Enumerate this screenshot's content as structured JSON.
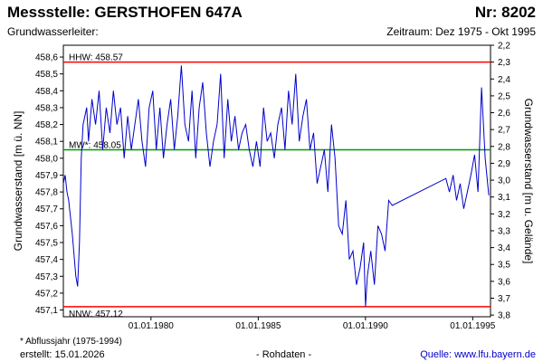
{
  "header": {
    "title": "Messstelle: GERSTHOFEN 647A",
    "number": "Nr: 8202",
    "subtitle": "Grundwasserleiter:",
    "period": "Zeitraum: Dez 1975 - Okt 1995"
  },
  "footer": {
    "footnote": "* Abflussjahr (1975-1994)",
    "created": "erstellt:  15.01.2026",
    "rawdata": "- Rohdaten -",
    "source": "Quelle: www.lfu.bayern.de"
  },
  "colors": {
    "series": "#0000cc",
    "extreme_lines": "#ff0000",
    "mean_line": "#009900",
    "source_link": "#0000cc"
  },
  "chart_data": {
    "type": "line",
    "title": "Messstelle: GERSTHOFEN 647A",
    "ylabel": "Grundwasserstand [m ü. NN]",
    "y2label": "Grundwasserstand [m u. Gelände]",
    "xlim": [
      "1975-12-01",
      "1995-10-31"
    ],
    "ylim": [
      457.06,
      458.67
    ],
    "y2lim": [
      2.2,
      3.81
    ],
    "yticks": [
      "457,1",
      "457,2",
      "457,3",
      "457,4",
      "457,5",
      "457,6",
      "457,7",
      "457,8",
      "457,9",
      "458,0",
      "458,1",
      "458,2",
      "458,3",
      "458,4",
      "458,5",
      "458,6"
    ],
    "y2ticks": [
      "2,2",
      "2,3",
      "2,4",
      "2,5",
      "2,6",
      "2,7",
      "2,8",
      "2,9",
      "3,0",
      "3,1",
      "3,2",
      "3,3",
      "3,4",
      "3,5",
      "3,6",
      "3,7",
      "3,8"
    ],
    "xticks": [
      {
        "date": "1980-01-01",
        "label": "01.01.1980"
      },
      {
        "date": "1985-01-01",
        "label": "01.01.1985"
      },
      {
        "date": "1990-01-01",
        "label": "01.01.1990"
      },
      {
        "date": "1995-01-01",
        "label": "01.01.1995"
      }
    ],
    "reference_lines": [
      {
        "label": "HHW: 458.57",
        "value": 458.57
      },
      {
        "label": "MW*: 458.05",
        "value": 458.05
      },
      {
        "label": "NNW: 457.12",
        "value": 457.12
      }
    ],
    "grid": false,
    "series": [
      {
        "x": [
          "1975-12-01",
          "1976-01-01",
          "1976-02-01",
          "1976-03-01",
          "1976-05-01",
          "1976-07-01",
          "1976-08-01",
          "1976-09-01",
          "1976-10-01",
          "1976-11-01",
          "1977-01-01",
          "1977-02-01",
          "1977-04-01",
          "1977-06-01",
          "1977-08-01",
          "1977-10-01",
          "1977-12-01",
          "1978-02-01",
          "1978-04-01",
          "1978-06-01",
          "1978-08-01",
          "1978-10-01",
          "1978-12-01",
          "1979-02-01",
          "1979-04-01",
          "1979-06-01",
          "1979-08-01",
          "1979-10-01",
          "1979-12-01",
          "1980-02-01",
          "1980-04-01",
          "1980-06-01",
          "1980-08-01",
          "1980-10-01",
          "1980-12-01",
          "1981-02-01",
          "1981-04-01",
          "1981-06-01",
          "1981-08-01",
          "1981-10-01",
          "1981-12-01",
          "1982-02-01",
          "1982-04-01",
          "1982-06-01",
          "1982-08-01",
          "1982-10-01",
          "1982-12-01",
          "1983-02-01",
          "1983-04-01",
          "1983-06-01",
          "1983-08-01",
          "1983-10-01",
          "1983-12-01",
          "1984-02-01",
          "1984-04-01",
          "1984-06-01",
          "1984-08-01",
          "1984-10-01",
          "1984-12-01",
          "1985-02-01",
          "1985-04-01",
          "1985-06-01",
          "1985-08-01",
          "1985-10-01",
          "1985-12-01",
          "1986-02-01",
          "1986-04-01",
          "1986-06-01",
          "1986-08-01",
          "1986-10-01",
          "1986-12-01",
          "1987-02-01",
          "1987-04-01",
          "1987-06-01",
          "1987-08-01",
          "1987-10-01",
          "1987-12-01",
          "1988-02-01",
          "1988-04-01",
          "1988-06-01",
          "1988-08-01",
          "1988-10-01",
          "1988-12-01",
          "1989-02-01",
          "1989-04-01",
          "1989-06-01",
          "1989-08-01",
          "1989-10-01",
          "1989-12-01",
          "1990-01-01",
          "1990-02-01",
          "1990-04-01",
          "1990-06-01",
          "1990-08-01",
          "1990-10-01",
          "1990-12-01",
          "1991-02-01",
          "1991-04-01",
          "1993-10-01",
          "1993-12-01",
          "1994-02-01",
          "1994-04-01",
          "1994-06-01",
          "1994-08-01",
          "1994-10-01",
          "1994-12-01",
          "1995-02-01",
          "1995-04-01",
          "1995-06-01",
          "1995-08-01",
          "1995-10-01"
        ],
        "y": [
          457.85,
          457.9,
          457.8,
          457.75,
          457.55,
          457.3,
          457.24,
          457.5,
          458.0,
          458.2,
          458.3,
          458.1,
          458.35,
          458.2,
          458.4,
          458.05,
          458.3,
          458.15,
          458.4,
          458.2,
          458.3,
          458.0,
          458.25,
          458.05,
          458.2,
          458.35,
          458.1,
          457.95,
          458.3,
          458.4,
          458.05,
          458.3,
          458.0,
          458.2,
          458.35,
          458.05,
          458.25,
          458.55,
          458.2,
          458.1,
          458.4,
          458.0,
          458.3,
          458.45,
          458.15,
          457.95,
          458.1,
          458.2,
          458.5,
          458.0,
          458.35,
          458.1,
          458.25,
          458.05,
          458.15,
          458.2,
          458.05,
          457.95,
          458.1,
          457.95,
          458.3,
          458.1,
          458.15,
          458.0,
          458.2,
          458.3,
          458.05,
          458.4,
          458.2,
          458.5,
          458.1,
          458.25,
          458.35,
          458.05,
          458.15,
          457.85,
          457.95,
          458.05,
          457.8,
          458.2,
          458.0,
          457.6,
          457.55,
          457.75,
          457.4,
          457.45,
          457.25,
          457.35,
          457.5,
          457.12,
          457.3,
          457.45,
          457.25,
          457.6,
          457.55,
          457.45,
          457.75,
          457.72,
          457.88,
          457.8,
          457.9,
          457.75,
          457.85,
          457.7,
          457.8,
          457.9,
          458.02,
          457.8,
          458.42,
          458.0,
          457.78
        ]
      }
    ]
  }
}
